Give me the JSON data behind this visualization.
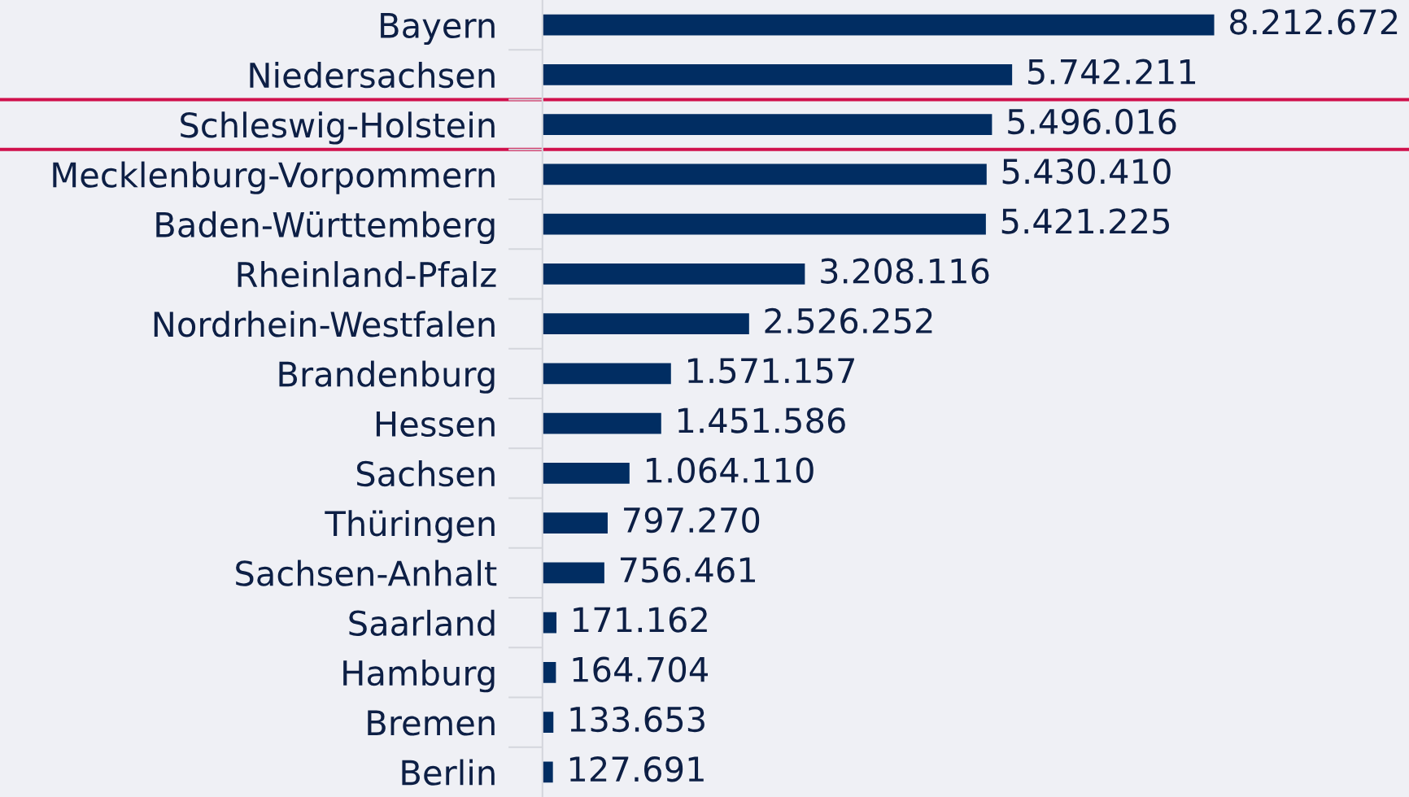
{
  "chart_data": {
    "type": "bar",
    "orientation": "horizontal",
    "categories": [
      "Bayern",
      "Niedersachsen",
      "Schleswig-Holstein",
      "Mecklenburg-Vorpommern",
      "Baden-Württemberg",
      "Rheinland-Pfalz",
      "Nordrhein-Westfalen",
      "Brandenburg",
      "Hessen",
      "Sachsen",
      "Thüringen",
      "Sachsen-Anhalt",
      "Saarland",
      "Hamburg",
      "Bremen",
      "Berlin"
    ],
    "values": [
      8212672,
      5742211,
      5496016,
      5430410,
      5421225,
      3208116,
      2526252,
      1571157,
      1451586,
      1064110,
      797270,
      756461,
      171162,
      164704,
      133653,
      127691
    ],
    "value_labels": [
      "8.212.672",
      "5.742.211",
      "5.496.016",
      "5.430.410",
      "5.421.225",
      "3.208.116",
      "2.526.252",
      "1.571.157",
      "1.451.586",
      "1.064.110",
      "797.270",
      "756.461",
      "171.162",
      "164.704",
      "133.653",
      "127.691"
    ],
    "color": "#012d62",
    "tick_labels": "y",
    "grid": false,
    "legend": false
  }
}
